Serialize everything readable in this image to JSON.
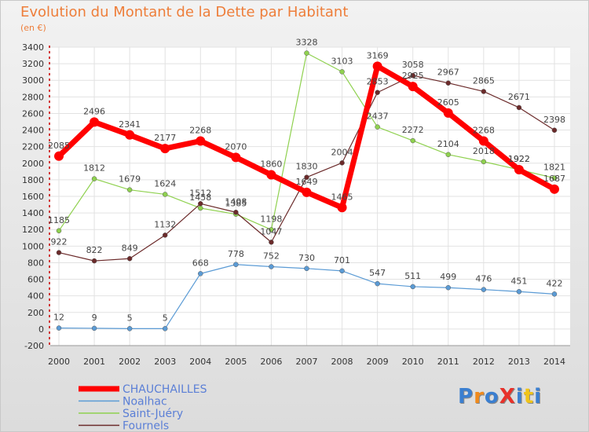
{
  "title": "Evolution du Montant de la Dette par Habitant",
  "subtitle": "(en €)",
  "logo_text": "ProXiti",
  "chart_data": {
    "type": "line",
    "title": "Evolution du Montant de la Dette par Habitant",
    "subtitle": "(en €)",
    "x": [
      "2000",
      "2001",
      "2002",
      "2003",
      "2004",
      "2005",
      "2006",
      "2007",
      "2008",
      "2009",
      "2010",
      "2011",
      "2012",
      "2013",
      "2014"
    ],
    "ylim": [
      -200,
      3400
    ],
    "yticks": [
      -200,
      0,
      200,
      400,
      600,
      800,
      1000,
      1200,
      1400,
      1600,
      1800,
      2000,
      2200,
      2400,
      2600,
      2800,
      3000,
      3200,
      3400
    ],
    "grid": true,
    "legend_position": "bottom-left",
    "series": [
      {
        "name": "CHAUCHAILLES",
        "color": "#ff0000",
        "values": [
          2085,
          2496,
          2341,
          2177,
          2268,
          2070,
          1860,
          1649,
          1465,
          3169,
          2925,
          2605,
          2268,
          1922,
          1687
        ]
      },
      {
        "name": "Noalhac",
        "color": "#5b9bd5",
        "values": [
          12,
          9,
          5,
          5,
          668,
          778,
          752,
          730,
          701,
          547,
          511,
          499,
          476,
          451,
          422
        ]
      },
      {
        "name": "Saint-Juéry",
        "color": "#8fd14f",
        "values": [
          1185,
          1812,
          1679,
          1624,
          1458,
          1385,
          1198,
          3328,
          3103,
          2437,
          2272,
          2104,
          2018,
          1922,
          1821
        ]
      },
      {
        "name": "Fournels",
        "color": "#6b2a2a",
        "values": [
          922,
          822,
          849,
          1132,
          1512,
          1408,
          1047,
          1830,
          2004,
          2853,
          3058,
          2967,
          2865,
          2671,
          2398
        ]
      }
    ]
  }
}
